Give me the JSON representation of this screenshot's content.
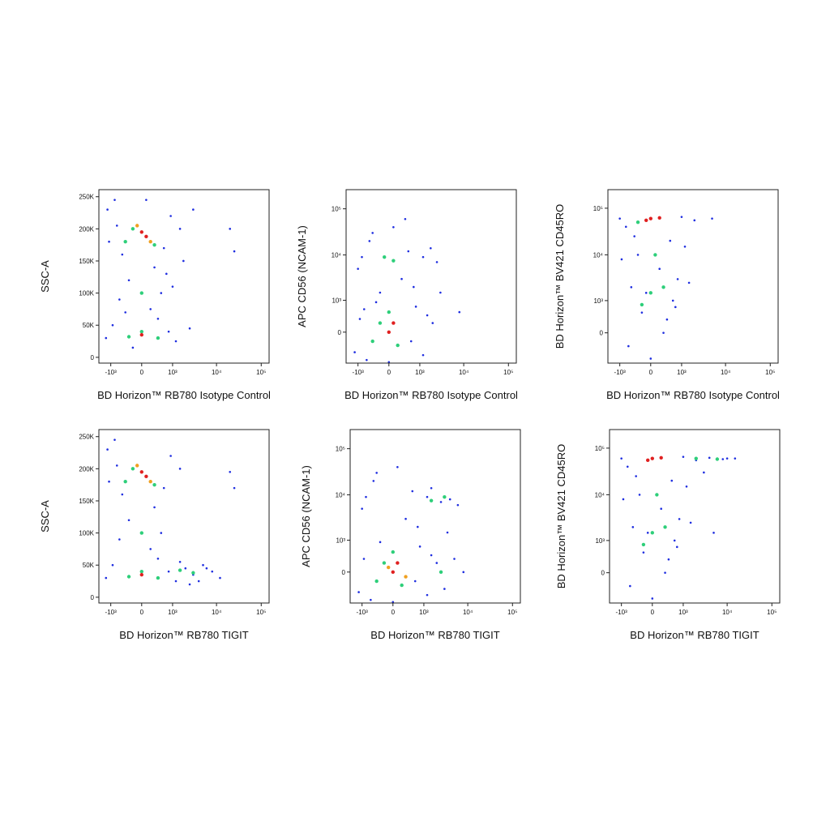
{
  "chart_data": [
    {
      "type": "scatter",
      "xlabel": "BD Horizon™ RB780 Isotype Control",
      "ylabel": "SSC-A",
      "xscale": "biexponential",
      "yscale": "linear",
      "xlim": [
        -1900,
        150000
      ],
      "ylim": [
        -9000,
        261000
      ],
      "xticks": [
        {
          "value": -1000,
          "label": "-10³"
        },
        0,
        {
          "value": 1000,
          "label": "10³"
        },
        {
          "value": 10000,
          "label": "10⁴"
        },
        {
          "value": 100000,
          "label": "10⁵"
        }
      ],
      "yticks": [
        0,
        {
          "value": 50000,
          "label": "50K"
        },
        {
          "value": 100000,
          "label": "100K"
        },
        {
          "value": 150000,
          "label": "150K"
        },
        {
          "value": 200000,
          "label": "200K"
        },
        {
          "value": 250000,
          "label": "250K"
        }
      ],
      "series": [
        {
          "color": "#1f2ee0",
          "x": [
            -1200,
            -800,
            -500,
            600,
            900,
            -1100,
            1500,
            300,
            -300,
            500,
            -600,
            200,
            -900,
            800,
            -1300,
            1200,
            400,
            -200,
            2500,
            1800,
            -700,
            100,
            3000,
            20000,
            25000,
            1000,
            -400,
            700
          ],
          "y": [
            230000,
            245000,
            160000,
            170000,
            220000,
            180000,
            200000,
            140000,
            120000,
            100000,
            90000,
            75000,
            50000,
            40000,
            30000,
            25000,
            60000,
            15000,
            45000,
            150000,
            205000,
            245000,
            230000,
            200000,
            165000,
            110000,
            70000,
            130000
          ]
        },
        {
          "color": "#2ecf7a",
          "x": [
            -200,
            300,
            -400,
            0,
            -300,
            400,
            0
          ],
          "y": [
            200000,
            175000,
            180000,
            40000,
            32000,
            30000,
            100000
          ]
        },
        {
          "color": "#f0a020",
          "x": [
            -100,
            200
          ],
          "y": [
            205000,
            180000
          ]
        },
        {
          "color": "#e02020",
          "x": [
            0,
            100,
            0
          ],
          "y": [
            195000,
            188000,
            35000
          ]
        }
      ]
    },
    {
      "type": "scatter",
      "xlabel": "BD Horizon™ RB780 Isotype Control",
      "ylabel": "APC CD56 (NCAM-1)",
      "xscale": "biexponential",
      "yscale": "biexponential",
      "xlim": [
        -1900,
        150000
      ],
      "ylim": [
        -950,
        260000
      ],
      "xticks": [
        {
          "value": -1000,
          "label": "-10³"
        },
        0,
        {
          "value": 1000,
          "label": "10³"
        },
        {
          "value": 10000,
          "label": "10⁴"
        },
        {
          "value": 100000,
          "label": "10⁵"
        }
      ],
      "yticks": [
        0,
        {
          "value": 1000,
          "label": "10³"
        },
        {
          "value": 10000,
          "label": "10⁴"
        },
        {
          "value": 100000,
          "label": "10⁵"
        }
      ],
      "series": [
        {
          "color": "#1f2ee0",
          "x": [
            -1200,
            -900,
            1200,
            1500,
            -600,
            800,
            0,
            -300,
            600,
            2000,
            -1000,
            500,
            -500,
            1200,
            300,
            -200,
            2500,
            -800,
            100,
            -400,
            3000,
            8000,
            700,
            -700,
            400,
            1800
          ],
          "y": [
            -500,
            300,
            -600,
            400,
            -800,
            700,
            -900,
            900,
            -200,
            200,
            5000,
            12000,
            20000,
            9000,
            3000,
            1500,
            7000,
            9000,
            40000,
            30000,
            1500,
            500,
            2000,
            600,
            60000,
            14000
          ]
        },
        {
          "color": "#2ecf7a",
          "x": [
            -200,
            200,
            0,
            -400,
            100,
            -100
          ],
          "y": [
            200,
            -300,
            500,
            -200,
            7500,
            9000
          ]
        },
        {
          "color": "#e02020",
          "x": [
            0,
            100
          ],
          "y": [
            0,
            200
          ]
        }
      ]
    },
    {
      "type": "scatter",
      "xlabel": "BD Horizon™ RB780 Isotype Control",
      "ylabel": "BD Horizon™ BV421 CD45RO",
      "xscale": "biexponential",
      "yscale": "biexponential",
      "xlim": [
        -1900,
        150000
      ],
      "ylim": [
        -900,
        250000
      ],
      "xticks": [
        {
          "value": -1000,
          "label": "-10³"
        },
        0,
        {
          "value": 1000,
          "label": "10³"
        },
        {
          "value": 10000,
          "label": "10⁴"
        },
        {
          "value": 100000,
          "label": "10⁵"
        }
      ],
      "yticks": [
        0,
        {
          "value": 1000,
          "label": "10³"
        },
        {
          "value": 10000,
          "label": "10⁴"
        },
        {
          "value": 100000,
          "label": "10⁵"
        }
      ],
      "series": [
        {
          "color": "#1f2ee0",
          "x": [
            -1000,
            1000,
            2000,
            -700,
            500,
            -300,
            200,
            -500,
            600,
            -200,
            300,
            -600,
            800,
            -900,
            1200,
            0,
            400,
            -100,
            5000,
            1500,
            -400,
            700
          ],
          "y": [
            60000,
            65000,
            55000,
            40000,
            20000,
            10000,
            5000,
            2000,
            1000,
            500,
            0,
            -300,
            3000,
            8000,
            15000,
            -700,
            300,
            1500,
            60000,
            2500,
            25000,
            700
          ]
        },
        {
          "color": "#2ecf7a",
          "x": [
            0,
            -200,
            300,
            100,
            -300
          ],
          "y": [
            1500,
            800,
            2000,
            10000,
            50000
          ]
        },
        {
          "color": "#e02020",
          "x": [
            0,
            -100,
            200
          ],
          "y": [
            60000,
            55000,
            62000
          ]
        }
      ]
    },
    {
      "type": "scatter",
      "xlabel": "BD Horizon™ RB780 TIGIT",
      "ylabel": "SSC-A",
      "xscale": "biexponential",
      "yscale": "linear",
      "xlim": [
        -1900,
        150000
      ],
      "ylim": [
        -9000,
        261000
      ],
      "xticks": [
        {
          "value": -1000,
          "label": "-10³"
        },
        0,
        {
          "value": 1000,
          "label": "10³"
        },
        {
          "value": 10000,
          "label": "10⁴"
        },
        {
          "value": 100000,
          "label": "10⁵"
        }
      ],
      "yticks": [
        0,
        {
          "value": 50000,
          "label": "50K"
        },
        {
          "value": 100000,
          "label": "100K"
        },
        {
          "value": 150000,
          "label": "150K"
        },
        {
          "value": 200000,
          "label": "200K"
        },
        {
          "value": 250000,
          "label": "250K"
        }
      ],
      "series": [
        {
          "color": "#1f2ee0",
          "x": [
            -1200,
            -800,
            -500,
            600,
            900,
            -1100,
            1500,
            300,
            -300,
            500,
            -600,
            200,
            -900,
            800,
            -1300,
            1200,
            2000,
            3000,
            5000,
            8000,
            12000,
            4000,
            1500,
            6000,
            2500,
            20000,
            25000,
            -700,
            400
          ],
          "y": [
            230000,
            245000,
            160000,
            170000,
            220000,
            180000,
            200000,
            140000,
            120000,
            100000,
            90000,
            75000,
            50000,
            40000,
            30000,
            25000,
            45000,
            35000,
            50000,
            40000,
            30000,
            25000,
            55000,
            45000,
            20000,
            195000,
            170000,
            205000,
            60000
          ]
        },
        {
          "color": "#2ecf7a",
          "x": [
            -200,
            300,
            -400,
            0,
            -300,
            400,
            0,
            1500,
            3000
          ],
          "y": [
            200000,
            175000,
            180000,
            40000,
            32000,
            30000,
            100000,
            42000,
            38000
          ]
        },
        {
          "color": "#f0a020",
          "x": [
            -100,
            200
          ],
          "y": [
            205000,
            180000
          ]
        },
        {
          "color": "#e02020",
          "x": [
            0,
            100,
            0
          ],
          "y": [
            195000,
            188000,
            35000
          ]
        }
      ]
    },
    {
      "type": "scatter",
      "xlabel": "BD Horizon™ RB780 TIGIT",
      "ylabel": "APC CD56 (NCAM-1)",
      "xscale": "biexponential",
      "yscale": "biexponential",
      "xlim": [
        -1900,
        150000
      ],
      "ylim": [
        -950,
        260000
      ],
      "xticks": [
        {
          "value": -1000,
          "label": "-10³"
        },
        0,
        {
          "value": 1000,
          "label": "10³"
        },
        {
          "value": 10000,
          "label": "10⁴"
        },
        {
          "value": 100000,
          "label": "10⁵"
        }
      ],
      "yticks": [
        0,
        {
          "value": 1000,
          "label": "10³"
        },
        {
          "value": 10000,
          "label": "10⁴"
        },
        {
          "value": 100000,
          "label": "10⁵"
        }
      ],
      "series": [
        {
          "color": "#1f2ee0",
          "x": [
            -1200,
            -900,
            1200,
            1500,
            -600,
            800,
            0,
            -300,
            600,
            2000,
            3000,
            5000,
            8000,
            -1000,
            500,
            -500,
            1200,
            300,
            2500,
            4000,
            6000,
            -800,
            100,
            -400,
            1500,
            700,
            3500
          ],
          "y": [
            -500,
            300,
            -600,
            400,
            -800,
            700,
            -900,
            900,
            -200,
            200,
            -400,
            300,
            0,
            5000,
            12000,
            20000,
            9000,
            3000,
            7000,
            8000,
            6000,
            9000,
            40000,
            30000,
            14000,
            2000,
            1500
          ]
        },
        {
          "color": "#2ecf7a",
          "x": [
            -200,
            200,
            0,
            -400,
            2500,
            1500,
            3000
          ],
          "y": [
            200,
            -300,
            500,
            -200,
            0,
            7500,
            9000
          ]
        },
        {
          "color": "#f0a020",
          "x": [
            -100,
            300
          ],
          "y": [
            100,
            -100
          ]
        },
        {
          "color": "#e02020",
          "x": [
            0,
            100
          ],
          "y": [
            0,
            200
          ]
        }
      ]
    },
    {
      "type": "scatter",
      "xlabel": "BD Horizon™ RB780 TIGIT",
      "ylabel": "BD Horizon™ BV421 CD45RO",
      "xscale": "biexponential",
      "yscale": "biexponential",
      "xlim": [
        -1900,
        150000
      ],
      "ylim": [
        -900,
        250000
      ],
      "xticks": [
        {
          "value": -1000,
          "label": "-10³"
        },
        0,
        {
          "value": 1000,
          "label": "10³"
        },
        {
          "value": 10000,
          "label": "10⁴"
        },
        {
          "value": 100000,
          "label": "10⁵"
        }
      ],
      "yticks": [
        0,
        {
          "value": 1000,
          "label": "10³"
        },
        {
          "value": 10000,
          "label": "10⁴"
        },
        {
          "value": 100000,
          "label": "10⁵"
        }
      ],
      "series": [
        {
          "color": "#1f2ee0",
          "x": [
            -1000,
            1000,
            2000,
            4000,
            8000,
            15000,
            3000,
            -700,
            500,
            -300,
            200,
            -500,
            600,
            -200,
            300,
            -600,
            800,
            -900,
            1200,
            0,
            400,
            -100,
            1500,
            -400,
            700,
            5000,
            10000
          ],
          "y": [
            60000,
            65000,
            55000,
            62000,
            58000,
            60000,
            30000,
            40000,
            20000,
            10000,
            5000,
            2000,
            1000,
            500,
            0,
            -300,
            3000,
            8000,
            15000,
            -700,
            300,
            1500,
            2500,
            25000,
            700,
            1500,
            60000
          ]
        },
        {
          "color": "#2ecf7a",
          "x": [
            0,
            -200,
            300,
            100,
            2000,
            6000
          ],
          "y": [
            1500,
            800,
            2000,
            10000,
            60000,
            58000
          ]
        },
        {
          "color": "#e02020",
          "x": [
            0,
            -100,
            200
          ],
          "y": [
            60000,
            55000,
            62000
          ]
        }
      ]
    }
  ]
}
